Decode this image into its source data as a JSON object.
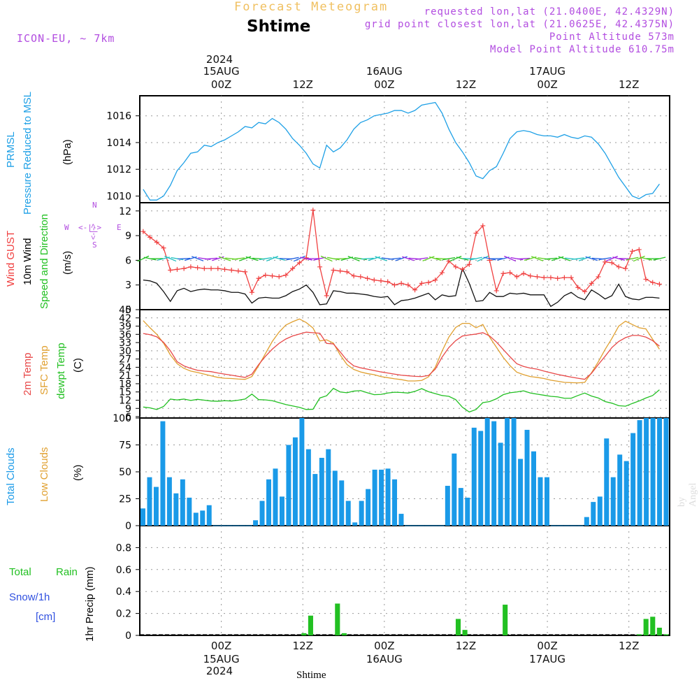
{
  "header": {
    "chart_title": "Forecast Meteogram",
    "model": "ICON-EU, ~ 7km",
    "location_title": "Shtime",
    "requested": "requested lon,lat (21.0400E, 42.4329N)",
    "gridpoint": "grid point closest lon,lat (21.0625E, 42.4375N)",
    "point_altitude": "Point Altitude 573m",
    "model_altitude": "Model Point Altitude 610.75m"
  },
  "time_axis": {
    "year": "2024",
    "labels": [
      {
        "hour": 12,
        "top": "00Z",
        "date": "15AUG"
      },
      {
        "hour": 24,
        "top": "12Z",
        "date": ""
      },
      {
        "hour": 36,
        "top": "00Z",
        "date": "16AUG"
      },
      {
        "hour": 48,
        "top": "12Z",
        "date": ""
      },
      {
        "hour": 60,
        "top": "00Z",
        "date": "17AUG"
      },
      {
        "hour": 72,
        "top": "12Z",
        "date": ""
      }
    ],
    "bottom_station": "Shtime"
  },
  "panels": {
    "pressure": {
      "label_1": "PRMSL",
      "label_2": "Pressure Reduced to MSL",
      "unit": "(hPa)"
    },
    "wind": {
      "label_gust": "Wind GUST",
      "label_10m": "10m Wind",
      "label_speed": "Speed and Direction",
      "unit": "(m/s)",
      "compass_n": "N",
      "compass_s": "S",
      "compass_w": "W",
      "compass_e": "E",
      "compass_arrows_h": "<-|->",
      "compass_arrows_v": "<-|->"
    },
    "temp": {
      "label_2m": "2m Temp",
      "label_sfc": "SFC Temp",
      "label_dew": "dewpt Temp",
      "unit": "(C)"
    },
    "clouds": {
      "label_total": "Total Clouds",
      "label_low": "Low Clouds",
      "unit": "(%)"
    },
    "precip": {
      "label_rain_1": "Total",
      "label_rain_2": "Rain",
      "label_snow_1": "Snow/1h",
      "label_snow_2": "[cm]",
      "unit": "1hr Precip (mm)"
    }
  },
  "watermark": "by Angel",
  "colors": {
    "pressure": "#1ea0e6",
    "gust": "#f04040",
    "wind10m": "#111111",
    "temp2m": "#e84848",
    "sfc": "#e0a030",
    "dew": "#22c022",
    "clouds": "#1a9ae8",
    "rain": "#22c022",
    "purple": "#b24de0",
    "snow": "#3050e0"
  },
  "chart_data": [
    {
      "id": "pressure",
      "type": "line",
      "x_hours_start": 0,
      "x_hours_end": 78,
      "ylim": [
        1009.5,
        1017.5
      ],
      "yticks": [
        1010,
        1012,
        1014,
        1016
      ],
      "ylabel": "(hPa)",
      "series": [
        {
          "name": "PRMSL",
          "values": [
            1010.5,
            1009.7,
            1009.7,
            1010.0,
            1010.8,
            1011.9,
            1012.5,
            1013.2,
            1013.3,
            1013.8,
            1013.7,
            1014.0,
            1014.2,
            1014.5,
            1014.8,
            1015.2,
            1015.1,
            1015.5,
            1015.4,
            1015.8,
            1015.5,
            1015.0,
            1014.3,
            1013.8,
            1013.2,
            1012.4,
            1012.1,
            1013.8,
            1013.3,
            1013.6,
            1014.2,
            1015.0,
            1015.5,
            1015.7,
            1016.0,
            1016.1,
            1016.2,
            1016.4,
            1016.4,
            1016.2,
            1016.4,
            1016.8,
            1016.9,
            1017.0,
            1016.2,
            1015.0,
            1014.0,
            1013.3,
            1012.5,
            1011.5,
            1011.3,
            1011.9,
            1012.2,
            1013.2,
            1014.3,
            1014.8,
            1014.9,
            1014.8,
            1014.6,
            1014.5,
            1014.5,
            1014.4,
            1014.6,
            1014.4,
            1014.3,
            1014.5,
            1014.4,
            1013.9,
            1013.2,
            1012.3,
            1011.4,
            1010.7,
            1010.0,
            1009.8,
            1010.1,
            1010.2,
            1010.9
          ]
        }
      ]
    },
    {
      "id": "wind",
      "type": "line",
      "ylim": [
        0,
        13
      ],
      "yticks": [
        0,
        3,
        6,
        9,
        12
      ],
      "ylabel": "(m/s)",
      "series": [
        {
          "name": "Wind GUST",
          "values": [
            9.5,
            8.8,
            8.2,
            7.5,
            4.8,
            4.9,
            5.0,
            5.2,
            5.1,
            5.0,
            5.0,
            5.0,
            4.9,
            4.8,
            4.7,
            4.6,
            2.1,
            3.8,
            4.2,
            4.1,
            4.0,
            4.2,
            5.0,
            5.7,
            6.3,
            12.1,
            5.2,
            1.7,
            4.8,
            4.7,
            4.6,
            4.1,
            4.0,
            3.8,
            3.6,
            3.5,
            3.4,
            3.0,
            3.2,
            3.0,
            2.4,
            3.2,
            3.3,
            3.6,
            4.5,
            5.9,
            5.2,
            4.9,
            5.5,
            9.3,
            10.2,
            6.0,
            2.3,
            4.4,
            4.5,
            4.0,
            4.4,
            4.1,
            4.0,
            3.9,
            3.9,
            3.8,
            3.9,
            3.9,
            2.7,
            2.2,
            3.2,
            4.0,
            5.8,
            5.7,
            5.2,
            5.0,
            7.1,
            7.3,
            3.7,
            3.3,
            3.1
          ]
        },
        {
          "name": "10m Wind",
          "values": [
            3.6,
            3.5,
            3.2,
            2.2,
            1.0,
            2.3,
            2.6,
            2.2,
            2.4,
            2.5,
            2.4,
            2.4,
            2.3,
            2.1,
            2.1,
            1.9,
            0.8,
            1.4,
            1.5,
            1.4,
            1.4,
            1.7,
            2.2,
            2.5,
            3.0,
            2.1,
            0.6,
            0.7,
            2.3,
            2.2,
            2.0,
            2.0,
            1.9,
            1.8,
            1.6,
            1.5,
            1.6,
            0.6,
            1.1,
            1.2,
            1.4,
            1.7,
            2.0,
            1.2,
            1.8,
            1.6,
            1.7,
            5.0,
            3.2,
            1.0,
            1.1,
            2.1,
            1.6,
            1.6,
            2.0,
            1.9,
            2.0,
            1.8,
            1.8,
            1.8,
            0.4,
            0.9,
            1.7,
            2.1,
            1.5,
            1.2,
            2.4,
            1.9,
            1.3,
            1.7,
            3.1,
            1.6,
            1.3,
            1.2,
            1.5,
            1.5,
            1.4
          ]
        }
      ]
    },
    {
      "id": "temp",
      "type": "line",
      "ylim": [
        5.5,
        45
      ],
      "yticks": [
        6,
        9,
        12,
        15,
        18,
        21,
        24,
        27,
        30,
        33,
        36,
        39,
        42,
        45
      ],
      "ylabel": "(C)",
      "series": [
        {
          "name": "2m Temp",
          "values": [
            36.3,
            35.9,
            35.1,
            33.1,
            30.0,
            26.0,
            24.5,
            23.6,
            22.9,
            22.6,
            22.4,
            21.9,
            21.5,
            21.1,
            20.7,
            20.3,
            21.5,
            25.0,
            28.0,
            30.6,
            32.7,
            34.3,
            35.4,
            36.1,
            36.8,
            36.6,
            36.4,
            32.7,
            32.5,
            29.6,
            26.5,
            24.5,
            23.8,
            23.3,
            22.8,
            22.3,
            21.9,
            21.5,
            21.1,
            20.9,
            20.7,
            20.6,
            21.0,
            23.3,
            27.7,
            31.2,
            33.7,
            35.4,
            35.8,
            36.1,
            36.6,
            35.4,
            33.2,
            30.5,
            27.8,
            25.3,
            24.3,
            23.7,
            23.3,
            22.6,
            22.0,
            21.4,
            20.9,
            20.4,
            20.0,
            19.6,
            21.8,
            25.0,
            28.0,
            31.2,
            33.4,
            34.8,
            35.6,
            35.6,
            35.0,
            33.7,
            31.7
          ]
        },
        {
          "name": "SFC Temp",
          "values": [
            41.0,
            38.4,
            36.0,
            32.8,
            28.5,
            25.3,
            23.6,
            22.6,
            22.1,
            21.5,
            20.9,
            20.3,
            20.0,
            19.9,
            19.7,
            19.6,
            20.6,
            24.6,
            29.0,
            33.4,
            36.8,
            39.4,
            40.6,
            41.6,
            40.3,
            38.3,
            33.6,
            34.0,
            32.8,
            28.5,
            25.0,
            23.2,
            22.3,
            21.7,
            21.3,
            20.6,
            20.2,
            19.8,
            19.5,
            19.0,
            19.0,
            19.2,
            20.5,
            24.0,
            29.9,
            35.0,
            38.5,
            40.0,
            40.0,
            38.4,
            39.6,
            35.0,
            31.3,
            27.6,
            24.6,
            22.2,
            21.3,
            20.6,
            20.3,
            19.9,
            19.3,
            18.9,
            18.5,
            18.4,
            18.3,
            18.5,
            22.0,
            26.0,
            30.5,
            34.5,
            39.0,
            40.8,
            39.6,
            38.4,
            38.0,
            34.2,
            30.6
          ]
        },
        {
          "name": "dewpt Temp",
          "values": [
            9.5,
            9.2,
            8.6,
            9.7,
            12.4,
            12.1,
            12.4,
            11.9,
            12.3,
            12.0,
            11.7,
            11.6,
            11.8,
            11.7,
            12.0,
            12.4,
            14.2,
            12.2,
            12.1,
            11.8,
            11.1,
            10.4,
            9.9,
            9.4,
            8.6,
            8.7,
            12.8,
            13.6,
            16.3,
            15.0,
            14.7,
            15.3,
            15.5,
            14.7,
            14.0,
            14.1,
            14.6,
            14.9,
            14.8,
            14.6,
            15.2,
            16.2,
            15.1,
            14.4,
            13.7,
            13.4,
            12.2,
            9.4,
            7.7,
            8.6,
            11.1,
            11.5,
            12.5,
            14.0,
            14.7,
            15.0,
            15.4,
            14.6,
            14.2,
            13.8,
            13.4,
            13.2,
            12.7,
            12.7,
            13.7,
            14.6,
            13.5,
            12.8,
            11.5,
            10.9,
            10.0,
            9.8,
            10.8,
            11.7,
            12.8,
            13.7,
            15.8
          ]
        }
      ]
    },
    {
      "id": "clouds",
      "type": "bar",
      "ylim": [
        0,
        100
      ],
      "yticks": [
        0,
        25,
        50,
        75,
        100
      ],
      "ylabel": "(%)",
      "series": [
        {
          "name": "Total Clouds",
          "values": [
            16,
            45,
            36,
            97,
            45,
            30,
            43,
            26,
            12,
            14,
            19,
            0,
            0,
            0,
            0,
            0,
            0,
            5,
            23,
            43,
            53,
            27,
            75,
            82,
            100,
            71,
            48,
            63,
            71,
            51,
            42,
            23,
            3,
            23,
            34,
            52,
            52,
            53,
            43,
            11,
            0,
            0,
            0,
            0,
            0,
            0,
            37,
            67,
            35,
            26,
            91,
            88,
            100,
            97,
            77,
            100,
            100,
            62,
            89,
            69,
            45,
            45,
            0,
            0,
            0,
            0,
            0,
            8,
            22,
            27,
            81,
            45,
            66,
            60,
            86,
            98,
            100,
            100,
            100,
            100
          ]
        }
      ]
    },
    {
      "id": "precip",
      "type": "bar",
      "ylim": [
        0,
        1.0
      ],
      "yticks": [
        0,
        0.2,
        0.4,
        0.6,
        0.8
      ],
      "ylabel": "1hr Precip (mm)",
      "series": [
        {
          "name": "Total Rain",
          "values": [
            0,
            0,
            0,
            0,
            0,
            0,
            0,
            0,
            0,
            0,
            0,
            0,
            0,
            0,
            0,
            0,
            0,
            0,
            0,
            0,
            0,
            0,
            0,
            0,
            0.02,
            0.18,
            0,
            0,
            0,
            0.29,
            0.02,
            0,
            0,
            0,
            0,
            0,
            0,
            0,
            0,
            0,
            0,
            0,
            0,
            0,
            0,
            0,
            0,
            0.15,
            0.05,
            0,
            0,
            0,
            0,
            0,
            0.28,
            0,
            0,
            0,
            0,
            0,
            0,
            0,
            0,
            0,
            0,
            0,
            0,
            0,
            0,
            0,
            0,
            0,
            0,
            0,
            0.01,
            0.15,
            0.17,
            0.07,
            0.01
          ]
        }
      ]
    }
  ]
}
